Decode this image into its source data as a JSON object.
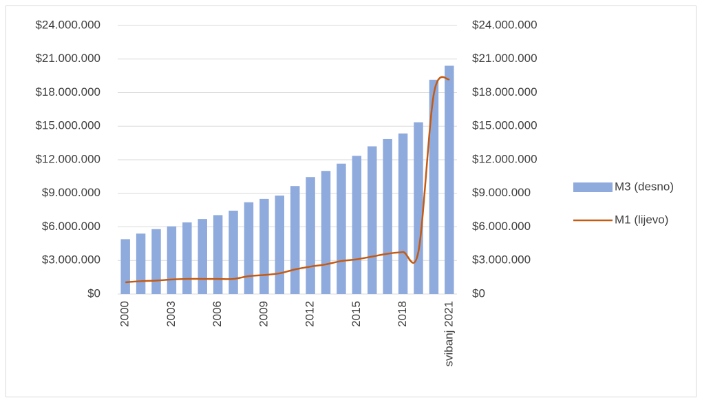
{
  "chart_data": {
    "type": "bar-line",
    "categories": [
      "2000",
      null,
      null,
      "2003",
      null,
      null,
      "2006",
      null,
      null,
      "2009",
      null,
      null,
      "2012",
      null,
      null,
      "2015",
      null,
      null,
      "2018",
      null,
      null,
      "svibanj 2021"
    ],
    "series": [
      {
        "name": "M3 (desno)",
        "type": "bar",
        "axis": "y2",
        "color": "#8faadc",
        "values": [
          4900000,
          5400000,
          5800000,
          6050000,
          6400000,
          6700000,
          7050000,
          7450000,
          8200000,
          8500000,
          8800000,
          9650000,
          10450000,
          11000000,
          11650000,
          12350000,
          13200000,
          13850000,
          14350000,
          15350000,
          19150000,
          20400000
        ]
      },
      {
        "name": "M1 (lijevo)",
        "type": "line",
        "axis": "y",
        "color": "#c55a11",
        "values": [
          1050000,
          1150000,
          1200000,
          1300000,
          1350000,
          1350000,
          1350000,
          1350000,
          1600000,
          1700000,
          1850000,
          2200000,
          2450000,
          2650000,
          2950000,
          3100000,
          3350000,
          3600000,
          3750000,
          3800000,
          17900000,
          19200000
        ]
      }
    ],
    "ylim": [
      0,
      24000000
    ],
    "yticks": [
      {
        "value": 0,
        "label": "$0"
      },
      {
        "value": 3000000,
        "label": "$3.000.000"
      },
      {
        "value": 6000000,
        "label": "$6.000.000"
      },
      {
        "value": 9000000,
        "label": "$9.000.000"
      },
      {
        "value": 12000000,
        "label": "$12.000.000"
      },
      {
        "value": 15000000,
        "label": "$15.000.000"
      },
      {
        "value": 18000000,
        "label": "$18.000.000"
      },
      {
        "value": 21000000,
        "label": "$21.000.000"
      },
      {
        "value": 24000000,
        "label": "$24.000.000"
      }
    ],
    "y2lim": [
      0,
      24000000
    ],
    "y2ticks": [
      {
        "value": 0,
        "label": "$0"
      },
      {
        "value": 3000000,
        "label": "$3.000.000"
      },
      {
        "value": 6000000,
        "label": "$6.000.000"
      },
      {
        "value": 9000000,
        "label": "$9.000.000"
      },
      {
        "value": 12000000,
        "label": "$12.000.000"
      },
      {
        "value": 15000000,
        "label": "$15.000.000"
      },
      {
        "value": 18000000,
        "label": "$18.000.000"
      },
      {
        "value": 21000000,
        "label": "$21.000.000"
      },
      {
        "value": 24000000,
        "label": "$24.000.000"
      }
    ],
    "grid": true,
    "legend": "right"
  }
}
